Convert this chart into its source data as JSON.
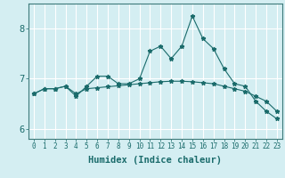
{
  "xlabel": "Humidex (Indice chaleur)",
  "ylabel": "",
  "background_color": "#d4eef2",
  "grid_color": "#ffffff",
  "line_color": "#1a6b6b",
  "x_values": [
    0,
    1,
    2,
    3,
    4,
    5,
    6,
    7,
    8,
    9,
    10,
    11,
    12,
    13,
    14,
    15,
    16,
    17,
    18,
    19,
    20,
    21,
    22,
    23
  ],
  "y_line1": [
    6.7,
    6.8,
    6.8,
    6.85,
    6.65,
    6.85,
    7.05,
    7.05,
    6.9,
    6.9,
    7.0,
    7.55,
    7.65,
    7.4,
    7.65,
    8.25,
    7.8,
    7.6,
    7.2,
    6.9,
    6.85,
    6.55,
    6.35,
    6.2
  ],
  "y_line2": [
    6.7,
    6.8,
    6.8,
    6.85,
    6.7,
    6.8,
    6.82,
    6.84,
    6.86,
    6.88,
    6.9,
    6.92,
    6.94,
    6.95,
    6.95,
    6.94,
    6.92,
    6.9,
    6.85,
    6.8,
    6.75,
    6.65,
    6.55,
    6.35
  ],
  "ylim": [
    5.8,
    8.5
  ],
  "xlim": [
    -0.5,
    23.5
  ],
  "yticks": [
    6,
    7,
    8
  ],
  "xticks": [
    0,
    1,
    2,
    3,
    4,
    5,
    6,
    7,
    8,
    9,
    10,
    11,
    12,
    13,
    14,
    15,
    16,
    17,
    18,
    19,
    20,
    21,
    22,
    23
  ],
  "xlabel_fontsize": 7.5,
  "xtick_fontsize": 5.5,
  "ytick_fontsize": 7.5
}
